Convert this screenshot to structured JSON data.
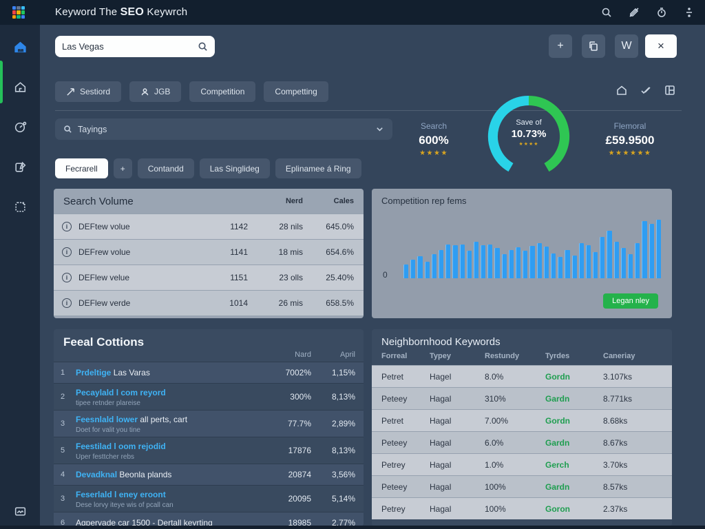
{
  "colors": {
    "accent_blue": "#2f9df2",
    "link_blue": "#3fb3f5",
    "green": "#24b24b",
    "gold": "#d9a520",
    "gauge_cyan": "#29d3e8",
    "gauge_green": "#2fc653"
  },
  "topbar": {
    "title_prefix": "Keyword  The ",
    "title_bold": "SEO",
    "title_suffix": " Keywrch"
  },
  "search": {
    "value": "Las Vegas"
  },
  "actions": {
    "add": "+",
    "w": "W",
    "close": "×"
  },
  "filters": [
    {
      "label": "Sestiord"
    },
    {
      "label": "JGB"
    },
    {
      "label": "Competition"
    },
    {
      "label": "Competting"
    }
  ],
  "keyword_dropdown": {
    "value": "Tayings"
  },
  "stats": {
    "left": {
      "label": "Search",
      "value": "600%",
      "stars": 4
    },
    "gauge": {
      "label": "Save of",
      "value": "10.73%",
      "stars": 4
    },
    "right": {
      "label": "Flemoral",
      "value": "£59.9500",
      "stars": 6
    }
  },
  "tabs": [
    {
      "label": "Fecrarell",
      "active": true
    },
    {
      "label": "+",
      "active": false
    },
    {
      "label": "Contandd",
      "active": false
    },
    {
      "label": "Las Singlideg",
      "active": false
    },
    {
      "label": "Eplinamee á Ring",
      "active": false
    }
  ],
  "search_volume": {
    "title": "Search Volume",
    "col1": "Nerd",
    "col2": "Cales",
    "rows": [
      {
        "name": "DEFtew volue",
        "value": "1142",
        "mid": "28 nils",
        "pct": "645.0%"
      },
      {
        "name": "DEFrew volue",
        "value": "1141",
        "mid": "18 mis",
        "pct": "654.6%"
      },
      {
        "name": "DEFlew velue",
        "value": "1151",
        "mid": "23 olls",
        "pct": "25.40%"
      },
      {
        "name": "DEFlew verde",
        "value": "1014",
        "mid": "26 mis",
        "pct": "658.5%"
      }
    ]
  },
  "chart_data": {
    "type": "bar",
    "title": "Competition rep fems",
    "categories": [],
    "values": [
      22,
      30,
      36,
      27,
      39,
      46,
      55,
      53,
      55,
      45,
      59,
      53,
      55,
      49,
      39,
      46,
      50,
      44,
      52,
      57,
      51,
      40,
      34,
      46,
      37,
      57,
      53,
      42,
      67,
      77,
      59,
      49,
      39,
      57,
      92,
      88,
      95
    ],
    "xlabel": "",
    "ylabel": "",
    "ylim": [
      0,
      100
    ],
    "baseline_label": "0",
    "grid": false,
    "legend": false,
    "bar_color": "#2f9df2",
    "button_label": "Legan nley"
  },
  "feeal": {
    "title": "Feeal Cottions",
    "col1": "Nard",
    "col2": "April",
    "rows": [
      {
        "num": "1",
        "link": "Prdeltige",
        "plain": " Las Varas",
        "subtitle": "",
        "v1": "7002%",
        "v2": "1,15%"
      },
      {
        "num": "2",
        "link": "Pecaylald l com reyord",
        "plain": "",
        "subtitle": "tipee retnder plareise",
        "v1": "300%",
        "v2": "8,13%"
      },
      {
        "num": "3",
        "link": "Feesnlald lower",
        "plain": " all perts, cart",
        "subtitle": "Doet for valit you tine",
        "v1": "77.7%",
        "v2": "2,89%"
      },
      {
        "num": "5",
        "link": "Feestilad l oom rejodid",
        "plain": "",
        "subtitle": "Uper festtcher rebs",
        "v1": "17876",
        "v2": "8,13%"
      },
      {
        "num": "4",
        "link": "Devadknal",
        "plain": " Beonla plands",
        "subtitle": "",
        "v1": "20874",
        "v2": "3,56%"
      },
      {
        "num": "3",
        "link": "Feserlald l eney eroont",
        "plain": "",
        "subtitle": "Dese lorvy iteye wis of pcall can",
        "v1": "20095",
        "v2": "5,14%"
      },
      {
        "num": "6",
        "link": "",
        "plain": "Agpervade car 1500 - Dertall keyrting",
        "subtitle": "",
        "v1": "18985",
        "v2": "2,77%"
      }
    ]
  },
  "neighborhood": {
    "title": "Neighbornhood Keywords",
    "columns": [
      "Forreal",
      "Typey",
      "Restundy",
      "Tyrdes",
      "Caneriay"
    ],
    "rows": [
      [
        "Petret",
        "Hagel",
        "8.0%",
        "Gordn",
        "3.107ks"
      ],
      [
        "Peteey",
        "Hagal",
        "310%",
        "Gardn",
        "8.771ks"
      ],
      [
        "Petret",
        "Hagal",
        "7.00%",
        "Gordn",
        "8.68ks"
      ],
      [
        "Peteey",
        "Hagal",
        "6.0%",
        "Gardn",
        "8.67ks"
      ],
      [
        "Petrey",
        "Hagal",
        "1.0%",
        "Gerch",
        "3.70ks"
      ],
      [
        "Peteey",
        "Hagal",
        "100%",
        "Gardn",
        "8.57ks"
      ],
      [
        "Petrey",
        "Hagal",
        "100%",
        "Goron",
        "2.37ks"
      ]
    ]
  }
}
